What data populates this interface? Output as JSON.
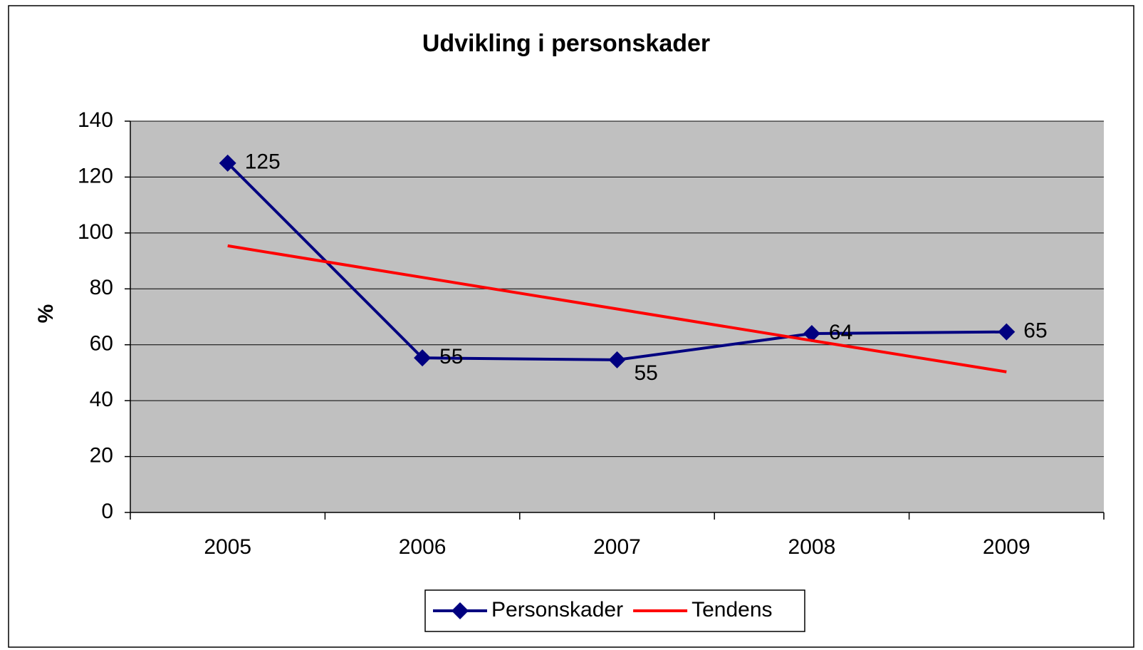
{
  "chart_data": {
    "type": "line",
    "title": "Udvikling i personskader",
    "y_label": "%",
    "categories": [
      "2005",
      "2006",
      "2007",
      "2008",
      "2009"
    ],
    "series": [
      {
        "name": "Personskader",
        "color": "#000080",
        "values": [
          125,
          55.3,
          54.6,
          64,
          64.6
        ],
        "value_labels": [
          "125",
          "55",
          "55",
          "64",
          "65"
        ],
        "marker": "diamond"
      },
      {
        "name": "Tendens",
        "color": "#ff0000",
        "values": [
          95.4,
          84.1,
          72.8,
          61.5,
          50.3
        ]
      }
    ],
    "ylim": [
      0,
      140
    ],
    "yticks": [
      0,
      20,
      40,
      60,
      80,
      100,
      120,
      140
    ],
    "grid": true,
    "legend": "bottom"
  }
}
